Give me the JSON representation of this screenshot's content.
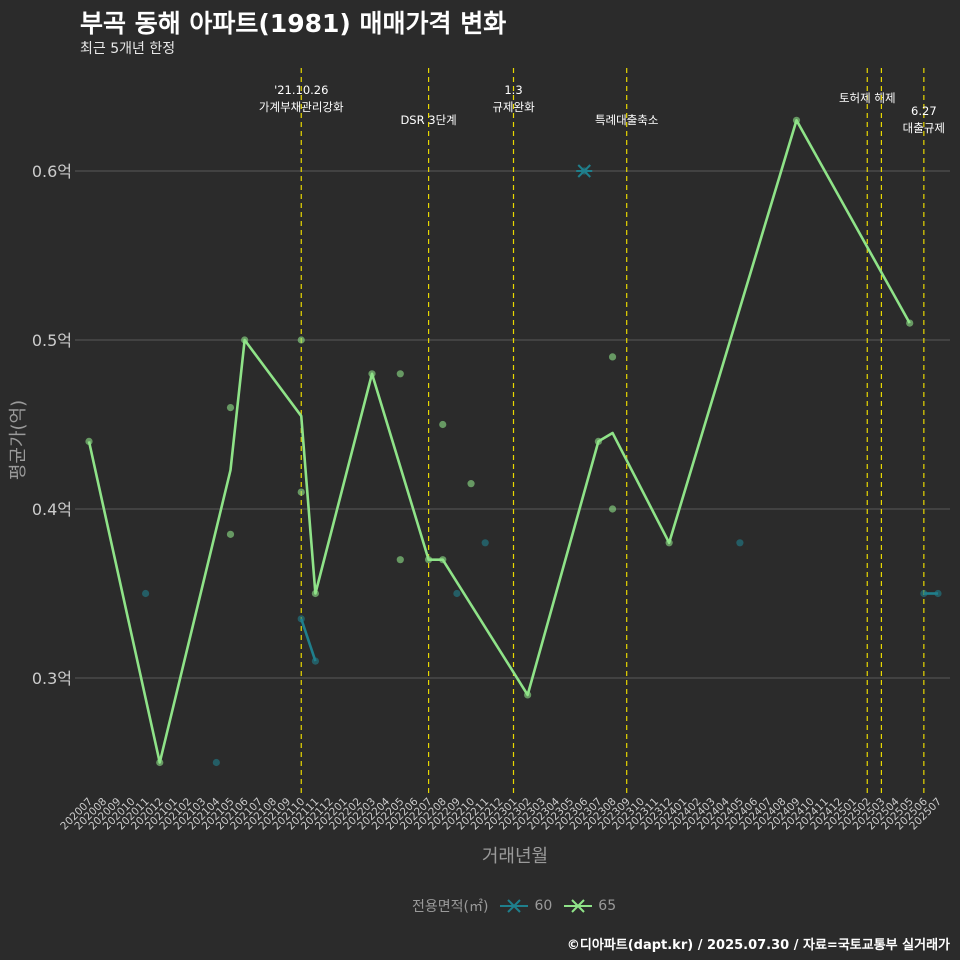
{
  "header": {
    "title": "부곡 동해 아파트(1981) 매매가격 변화",
    "subtitle": "최근 5개년 한정"
  },
  "credit": "©디아파트(dapt.kr) / 2025.07.30 / 자료=국토교통부 실거래가",
  "colors": {
    "background": "#2b2b2b",
    "grid": "#5a5a5a",
    "series_60": "#1f7f8c",
    "series_65": "#8fe388",
    "event_line": "#e8d800",
    "axis_text": "#cccccc",
    "axis_title": "#9a9a9a"
  },
  "chart_data": {
    "type": "line",
    "title": "부곡 동해 아파트(1981) 매매가격 변화",
    "subtitle": "최근 5개년 한정",
    "xlabel": "거래년월",
    "ylabel": "평균가(억)",
    "legend_title": "전용면적(㎡)",
    "legend_position": "bottom",
    "grid": true,
    "ylim": [
      0.23,
      0.66
    ],
    "y_ticks": [
      {
        "value": 0.3,
        "label": "0.3억"
      },
      {
        "value": 0.4,
        "label": "0.4억"
      },
      {
        "value": 0.5,
        "label": "0.5억"
      },
      {
        "value": 0.6,
        "label": "0.6억"
      }
    ],
    "categories": [
      "202007",
      "202008",
      "202009",
      "202010",
      "202011",
      "202012",
      "202101",
      "202102",
      "202103",
      "202104",
      "202105",
      "202106",
      "202107",
      "202108",
      "202109",
      "202110",
      "202111",
      "202112",
      "202201",
      "202202",
      "202203",
      "202204",
      "202205",
      "202206",
      "202207",
      "202208",
      "202209",
      "202210",
      "202211",
      "202212",
      "202301",
      "202302",
      "202303",
      "202304",
      "202305",
      "202306",
      "202307",
      "202308",
      "202309",
      "202310",
      "202311",
      "202312",
      "202401",
      "202402",
      "202403",
      "202404",
      "202405",
      "202406",
      "202407",
      "202408",
      "202409",
      "202410",
      "202411",
      "202412",
      "202501",
      "202502",
      "202503",
      "202504",
      "202505",
      "202506",
      "202507"
    ],
    "series": [
      {
        "name": "60",
        "color": "#1f7f8c",
        "line": [
          {
            "x": "202110",
            "y": 0.335
          },
          {
            "x": "202111",
            "y": 0.31
          },
          {
            "x": "202506",
            "y": 0.35
          },
          {
            "x": "202507",
            "y": 0.35
          }
        ],
        "line_breaks_after": [
          1
        ],
        "cross_markers": [
          {
            "x": "202306",
            "y": 0.6
          }
        ],
        "points": [
          {
            "x": "202011",
            "y": 0.35
          },
          {
            "x": "202104",
            "y": 0.25
          },
          {
            "x": "202110",
            "y": 0.335
          },
          {
            "x": "202111",
            "y": 0.31
          },
          {
            "x": "202209",
            "y": 0.35
          },
          {
            "x": "202211",
            "y": 0.38
          },
          {
            "x": "202405",
            "y": 0.38
          },
          {
            "x": "202506",
            "y": 0.35
          },
          {
            "x": "202507",
            "y": 0.35
          }
        ]
      },
      {
        "name": "65",
        "color": "#8fe388",
        "line": [
          {
            "x": "202007",
            "y": 0.44
          },
          {
            "x": "202012",
            "y": 0.25
          },
          {
            "x": "202105",
            "y": 0.423
          },
          {
            "x": "202106",
            "y": 0.5
          },
          {
            "x": "202110",
            "y": 0.455
          },
          {
            "x": "202111",
            "y": 0.35
          },
          {
            "x": "202203",
            "y": 0.48
          },
          {
            "x": "202207",
            "y": 0.37
          },
          {
            "x": "202208",
            "y": 0.37
          },
          {
            "x": "202302",
            "y": 0.29
          },
          {
            "x": "202307",
            "y": 0.44
          },
          {
            "x": "202308",
            "y": 0.445
          },
          {
            "x": "202312",
            "y": 0.38
          },
          {
            "x": "202409",
            "y": 0.63
          },
          {
            "x": "202505",
            "y": 0.51
          }
        ],
        "points": [
          {
            "x": "202007",
            "y": 0.44
          },
          {
            "x": "202012",
            "y": 0.25
          },
          {
            "x": "202105",
            "y": 0.46
          },
          {
            "x": "202105",
            "y": 0.385
          },
          {
            "x": "202106",
            "y": 0.5
          },
          {
            "x": "202110",
            "y": 0.5
          },
          {
            "x": "202110",
            "y": 0.41
          },
          {
            "x": "202111",
            "y": 0.35
          },
          {
            "x": "202203",
            "y": 0.48
          },
          {
            "x": "202205",
            "y": 0.48
          },
          {
            "x": "202205",
            "y": 0.37
          },
          {
            "x": "202207",
            "y": 0.37
          },
          {
            "x": "202208",
            "y": 0.37
          },
          {
            "x": "202208",
            "y": 0.45
          },
          {
            "x": "202210",
            "y": 0.415
          },
          {
            "x": "202302",
            "y": 0.29
          },
          {
            "x": "202307",
            "y": 0.44
          },
          {
            "x": "202308",
            "y": 0.49
          },
          {
            "x": "202308",
            "y": 0.4
          },
          {
            "x": "202312",
            "y": 0.38
          },
          {
            "x": "202409",
            "y": 0.63
          },
          {
            "x": "202505",
            "y": 0.51
          }
        ]
      }
    ],
    "events": [
      {
        "x": "202110",
        "lines": [
          "'21.10.26",
          "가계부채관리강화"
        ]
      },
      {
        "x": "202207",
        "lines": [
          "DSR 3단계"
        ]
      },
      {
        "x": "202301",
        "lines": [
          "1.3",
          "규제완화"
        ]
      },
      {
        "x": "202309",
        "lines": [
          "특례대출축소"
        ]
      },
      {
        "x": "202502",
        "lines": [
          "토허제 해제"
        ]
      },
      {
        "x": "202503",
        "lines": []
      },
      {
        "x": "202506",
        "lines": [
          "6.27",
          "대출규제"
        ]
      }
    ]
  }
}
